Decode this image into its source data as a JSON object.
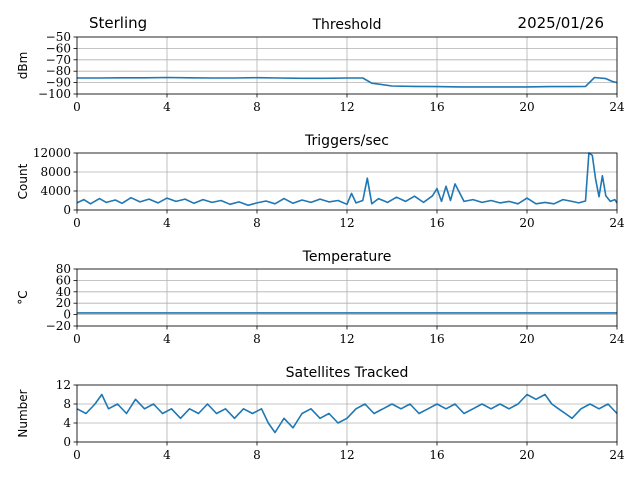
{
  "header": {
    "station": "Sterling",
    "date": "2025/01/26"
  },
  "style": {
    "line_color": "#1f77b4",
    "grid_color": "#b0b0b0"
  },
  "chart_data": [
    {
      "type": "line",
      "title": "Threshold",
      "xlabel": "",
      "ylabel": "dBm",
      "xlim": [
        0,
        24
      ],
      "ylim": [
        -100,
        -50
      ],
      "xticks": [
        0,
        4,
        8,
        12,
        16,
        20,
        24
      ],
      "yticks": [
        -100,
        -90,
        -80,
        -70,
        -60,
        -50
      ],
      "ytick_labels": [
        "−100",
        "−90",
        "−80",
        "−70",
        "−60",
        "−50"
      ],
      "grid": true,
      "series": [
        {
          "x": [
            0,
            1,
            2,
            3,
            4,
            5,
            6,
            7,
            8,
            9,
            10,
            11,
            12,
            12.7,
            13.1,
            14,
            15,
            16,
            17,
            18,
            19,
            20,
            21,
            22,
            22.6,
            23.0,
            23.5,
            23.8,
            24
          ],
          "y": [
            -86,
            -86,
            -85.8,
            -85.8,
            -85.5,
            -85.8,
            -86,
            -86,
            -85.7,
            -86,
            -86.2,
            -86.2,
            -86,
            -86,
            -90.5,
            -93,
            -93.3,
            -93.5,
            -93.8,
            -93.8,
            -93.8,
            -93.8,
            -93.5,
            -93.5,
            -93.3,
            -85.5,
            -86.5,
            -89,
            -90
          ]
        }
      ]
    },
    {
      "type": "line",
      "title": "Triggers/sec",
      "xlabel": "",
      "ylabel": "Count",
      "xlim": [
        0,
        24
      ],
      "ylim": [
        0,
        12000
      ],
      "xticks": [
        0,
        4,
        8,
        12,
        16,
        20,
        24
      ],
      "yticks": [
        0,
        4000,
        8000,
        12000
      ],
      "ytick_labels": [
        "0",
        "4000",
        "8000",
        "12000"
      ],
      "grid": true,
      "series": [
        {
          "x": [
            0,
            0.3,
            0.6,
            1.0,
            1.3,
            1.7,
            2.0,
            2.4,
            2.8,
            3.2,
            3.6,
            4.0,
            4.4,
            4.8,
            5.2,
            5.6,
            6.0,
            6.4,
            6.8,
            7.2,
            7.6,
            8.0,
            8.4,
            8.8,
            9.2,
            9.6,
            10.0,
            10.4,
            10.8,
            11.2,
            11.6,
            12.0,
            12.2,
            12.4,
            12.7,
            12.9,
            13.1,
            13.4,
            13.8,
            14.2,
            14.6,
            15.0,
            15.4,
            15.8,
            16.0,
            16.2,
            16.4,
            16.6,
            16.8,
            17.2,
            17.6,
            18.0,
            18.4,
            18.8,
            19.2,
            19.6,
            20.0,
            20.4,
            20.8,
            21.2,
            21.6,
            22.0,
            22.3,
            22.6,
            22.75,
            22.9,
            23.05,
            23.2,
            23.35,
            23.5,
            23.7,
            23.9,
            24
          ],
          "y": [
            1500,
            2200,
            1300,
            2400,
            1600,
            2100,
            1400,
            2600,
            1700,
            2300,
            1500,
            2500,
            1800,
            2300,
            1400,
            2200,
            1600,
            2000,
            1200,
            1700,
            1000,
            1500,
            1900,
            1300,
            2400,
            1400,
            2100,
            1600,
            2300,
            1700,
            2000,
            1200,
            3500,
            1500,
            2000,
            6700,
            1300,
            2400,
            1600,
            2700,
            1800,
            2900,
            1600,
            3000,
            4500,
            1800,
            5000,
            2000,
            5500,
            1800,
            2200,
            1600,
            2000,
            1500,
            1800,
            1300,
            2500,
            1300,
            1600,
            1300,
            2200,
            1800,
            1500,
            1900,
            12000,
            11500,
            6500,
            2800,
            7200,
            3000,
            1800,
            2200,
            1500
          ]
        }
      ]
    },
    {
      "type": "line",
      "title": "Temperature",
      "xlabel": "",
      "ylabel": "°C",
      "xlim": [
        0,
        24
      ],
      "ylim": [
        -20,
        80
      ],
      "xticks": [
        0,
        4,
        8,
        12,
        16,
        20,
        24
      ],
      "yticks": [
        -20,
        0,
        20,
        40,
        60,
        80
      ],
      "ytick_labels": [
        "−20",
        "0",
        "20",
        "40",
        "60",
        "80"
      ],
      "grid": true,
      "series": [
        {
          "x": [
            0,
            4,
            8,
            12,
            16,
            20,
            24
          ],
          "y": [
            3,
            3,
            3,
            3,
            3,
            3,
            3
          ]
        }
      ]
    },
    {
      "type": "line",
      "title": "Satellites Tracked",
      "xlabel": "",
      "ylabel": "Number",
      "xlim": [
        0,
        24
      ],
      "ylim": [
        0,
        12
      ],
      "xticks": [
        0,
        4,
        8,
        12,
        16,
        20,
        24
      ],
      "yticks": [
        0,
        4,
        8,
        12
      ],
      "ytick_labels": [
        "0",
        "4",
        "8",
        "12"
      ],
      "grid": true,
      "series": [
        {
          "x": [
            0,
            0.4,
            0.8,
            1.1,
            1.4,
            1.8,
            2.2,
            2.6,
            3.0,
            3.4,
            3.8,
            4.2,
            4.6,
            5.0,
            5.4,
            5.8,
            6.2,
            6.6,
            7.0,
            7.4,
            7.8,
            8.2,
            8.5,
            8.8,
            9.2,
            9.6,
            10.0,
            10.4,
            10.8,
            11.2,
            11.6,
            12.0,
            12.4,
            12.8,
            13.2,
            13.6,
            14.0,
            14.4,
            14.8,
            15.2,
            15.6,
            16.0,
            16.4,
            16.8,
            17.2,
            17.6,
            18.0,
            18.4,
            18.8,
            19.2,
            19.6,
            20.0,
            20.4,
            20.8,
            21.1,
            21.4,
            21.7,
            22.0,
            22.4,
            22.8,
            23.2,
            23.6,
            24
          ],
          "y": [
            7,
            6,
            8,
            10,
            7,
            8,
            6,
            9,
            7,
            8,
            6,
            7,
            5,
            7,
            6,
            8,
            6,
            7,
            5,
            7,
            6,
            7,
            4,
            2,
            5,
            3,
            6,
            7,
            5,
            6,
            4,
            5,
            7,
            8,
            6,
            7,
            8,
            7,
            8,
            6,
            7,
            8,
            7,
            8,
            6,
            7,
            8,
            7,
            8,
            7,
            8,
            10,
            9,
            10,
            8,
            7,
            6,
            5,
            7,
            8,
            7,
            8,
            6
          ]
        }
      ]
    }
  ]
}
